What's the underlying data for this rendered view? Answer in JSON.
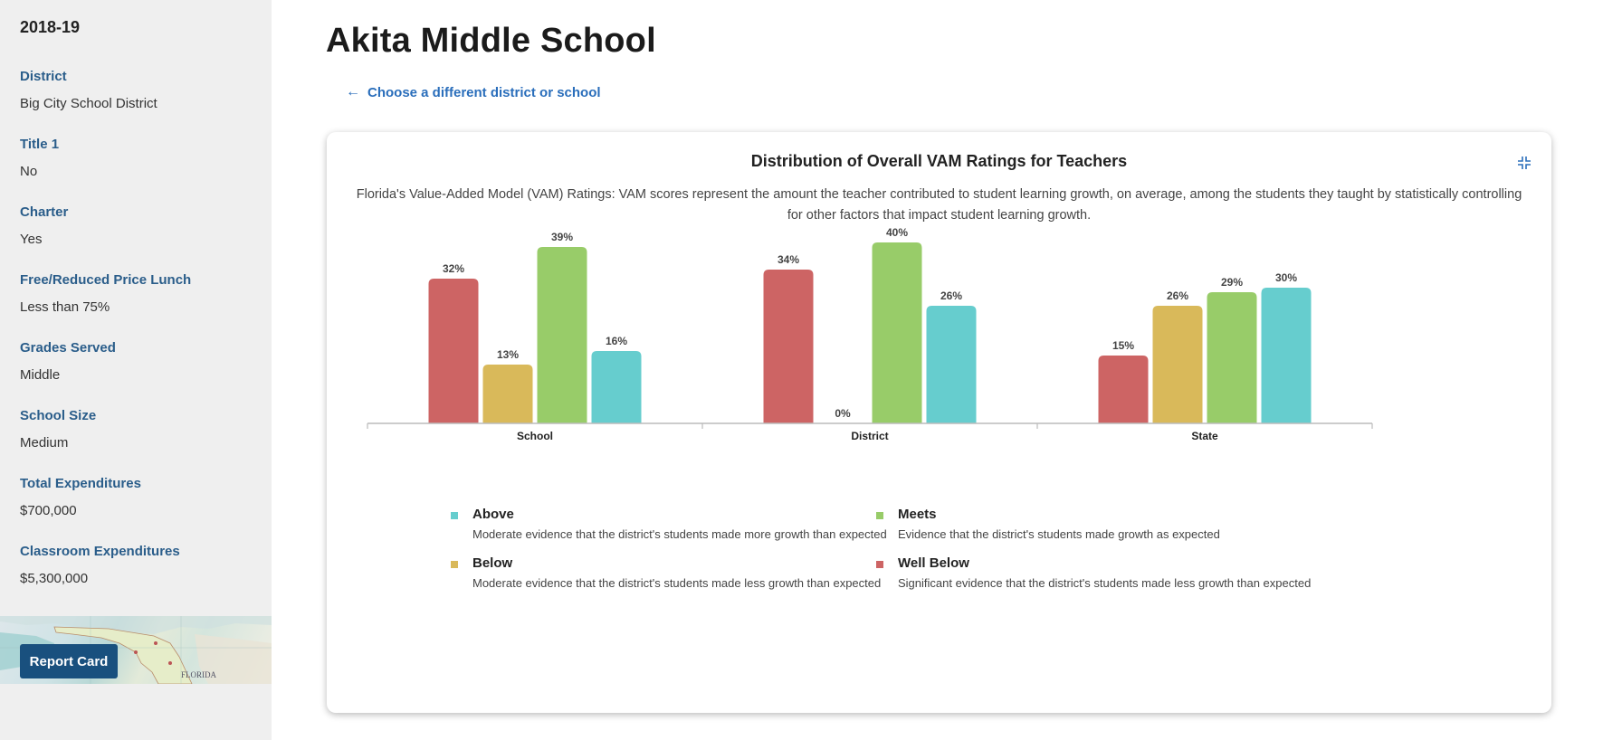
{
  "sidebar": {
    "year": "2018-19",
    "fields": [
      {
        "label": "District",
        "value": "Big City School District"
      },
      {
        "label": "Title 1",
        "value": "No"
      },
      {
        "label": "Charter",
        "value": "Yes"
      },
      {
        "label": "Free/Reduced Price Lunch",
        "value": "Less than 75%"
      },
      {
        "label": "Grades Served",
        "value": "Middle"
      },
      {
        "label": "School Size",
        "value": "Medium"
      },
      {
        "label": "Total Expenditures",
        "value": "$700,000"
      },
      {
        "label": "Classroom Expenditures",
        "value": "$5,300,000"
      }
    ],
    "report_card_label": "Report Card",
    "map_label": "FLORIDA"
  },
  "main": {
    "title": "Akita Middle School",
    "back_link": "Choose a different district or school",
    "back_icon": "arrow-left-icon"
  },
  "card": {
    "title": "Distribution of Overall VAM Ratings for Teachers",
    "description": "Florida's Value-Added Model (VAM) Ratings: VAM scores represent the amount the teacher contributed to student learning growth, on average, among the students they taught by statistically controlling for other factors that impact student learning growth.",
    "collapse_icon": "collapse-icon"
  },
  "colors": {
    "well_below": "#cd6464",
    "below": "#d9b95a",
    "meets": "#98cc69",
    "above": "#66cdce",
    "accent": "#19507e",
    "link": "#2a6ebb"
  },
  "chart_data": {
    "type": "bar",
    "categories": [
      "School",
      "District",
      "State"
    ],
    "series": [
      {
        "name": "Well Below",
        "color": "#cd6464",
        "values": [
          32,
          34,
          15
        ]
      },
      {
        "name": "Below",
        "color": "#d9b95a",
        "values": [
          13,
          0,
          26
        ]
      },
      {
        "name": "Meets",
        "color": "#98cc69",
        "values": [
          39,
          40,
          29
        ]
      },
      {
        "name": "Above",
        "color": "#66cdce",
        "values": [
          16,
          26,
          30
        ]
      }
    ],
    "value_suffix": "%",
    "ylim": [
      0,
      40
    ],
    "grid": false
  },
  "legend": [
    {
      "name": "Above",
      "color": "#66cdce",
      "desc": "Moderate evidence that the district's students made more growth than expected"
    },
    {
      "name": "Meets",
      "color": "#98cc69",
      "desc": "Evidence that the district's students made growth as expected"
    },
    {
      "name": "Below",
      "color": "#d9b95a",
      "desc": "Moderate evidence that the district's students made less growth than expected"
    },
    {
      "name": "Well Below",
      "color": "#cd6464",
      "desc": "Significant evidence that the district's students made less growth than expected"
    }
  ]
}
